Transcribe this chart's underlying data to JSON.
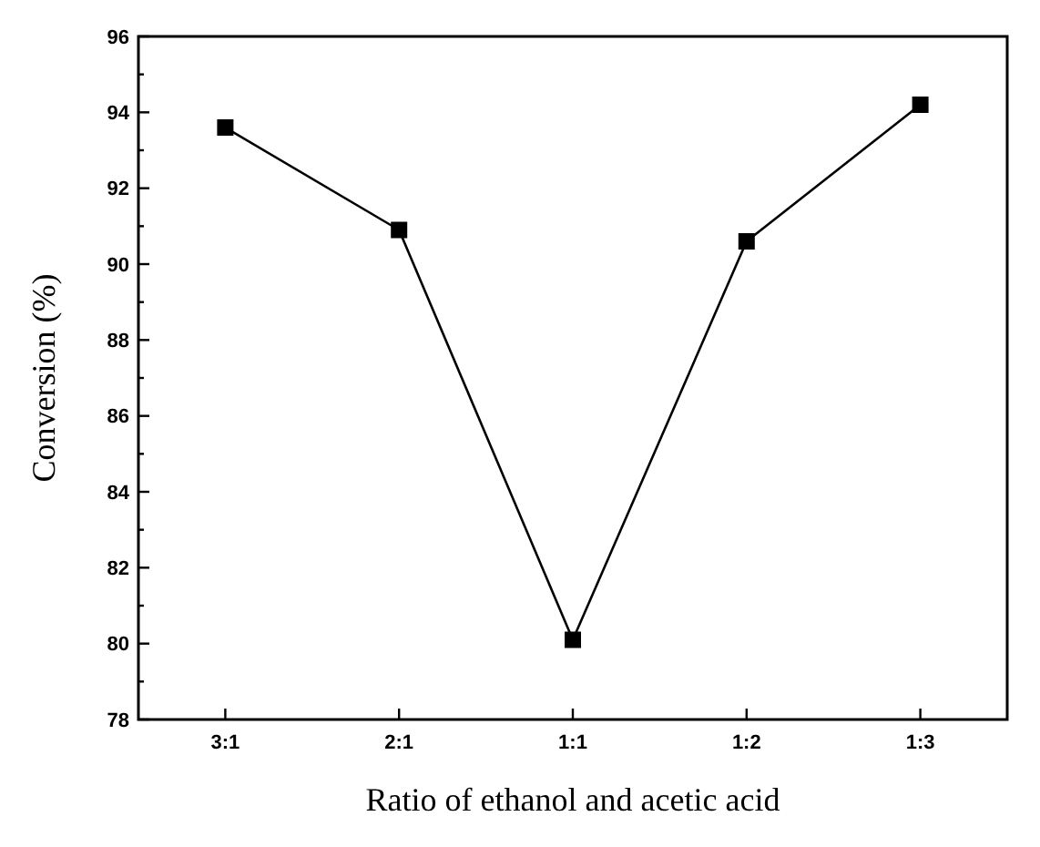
{
  "chart_data": {
    "type": "line",
    "xlabel": "Ratio of ethanol and acetic acid",
    "ylabel": "Conversion (%)",
    "categories": [
      "3:1",
      "2:1",
      "1:1",
      "1:2",
      "1:3"
    ],
    "series": [
      {
        "color": "#000000",
        "values": [
          93.6,
          90.9,
          80.1,
          90.6,
          94.2
        ]
      }
    ],
    "ylim": [
      78,
      96
    ],
    "yticks": [
      78,
      {
        "value": 79,
        "label": null
      },
      80,
      {
        "value": 81,
        "label": null
      },
      82,
      {
        "value": 83,
        "label": null
      },
      84,
      {
        "value": 85,
        "label": null
      },
      86,
      {
        "value": 87,
        "label": null
      },
      88,
      {
        "value": 89,
        "label": null
      },
      90,
      {
        "value": 91,
        "label": null
      },
      92,
      {
        "value": 93,
        "label": null
      },
      94,
      {
        "value": 95,
        "label": null
      },
      96
    ],
    "marker": "square",
    "line_style": "solid"
  }
}
